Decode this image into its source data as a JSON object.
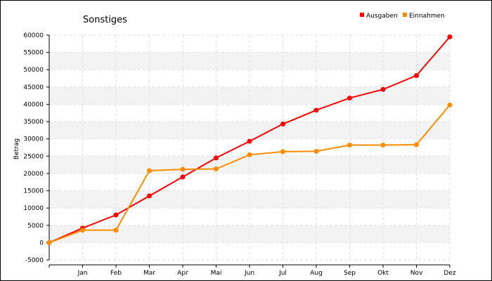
{
  "chart_data": {
    "type": "line",
    "title": "Sonstiges",
    "xlabel": "",
    "ylabel": "Betrag",
    "categories": [
      "",
      "Jan",
      "Feb",
      "Mar",
      "Apr",
      "Mai",
      "Jun",
      "Jul",
      "Aug",
      "Sep",
      "Okt",
      "Nov",
      "Dez"
    ],
    "ylim": [
      -5000,
      60000
    ],
    "yticks": [
      -5000,
      0,
      5000,
      10000,
      15000,
      20000,
      25000,
      30000,
      35000,
      40000,
      45000,
      50000,
      55000,
      60000
    ],
    "grid": true,
    "legend_position": "top-right",
    "series": [
      {
        "name": "Ausgaben",
        "color": "#ff0000",
        "values": [
          0,
          4200,
          8000,
          13500,
          19000,
          24500,
          29300,
          34300,
          38300,
          41800,
          44300,
          48300,
          59500
        ]
      },
      {
        "name": "Einnahmen",
        "color": "#ff8c00",
        "values": [
          0,
          3600,
          3600,
          20800,
          21200,
          21300,
          25400,
          26300,
          26400,
          28200,
          28200,
          28300,
          39800
        ]
      }
    ]
  }
}
